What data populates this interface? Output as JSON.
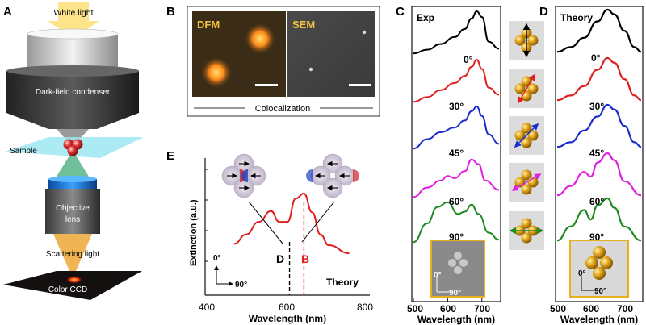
{
  "panels": {
    "a": {
      "letter": "A",
      "white_light": "White light",
      "condenser": "Dark-field condenser",
      "sample": "Sample",
      "objective": "Objective\nlens",
      "scattering": "Scattering light",
      "ccd": "Color CCD"
    },
    "b": {
      "letter": "B",
      "dfm": "DFM",
      "sem": "SEM",
      "caption": "Colocalization"
    },
    "c": {
      "letter": "C",
      "tag": "Exp",
      "angles": [
        "0°",
        "30°",
        "45°",
        "60°",
        "90°"
      ],
      "xlabel": "Wavelength (nm)",
      "xticks": [
        "500",
        "600",
        "700"
      ],
      "inset_axis_y": "0°",
      "inset_axis_x": "90°"
    },
    "d": {
      "letter": "D",
      "tag": "Theory",
      "angles": [
        "0°",
        "30°",
        "45°",
        "60°",
        "90°"
      ],
      "xlabel": "Wavelength (nm)",
      "xticks": [
        "500",
        "600",
        "700"
      ],
      "inset_axis_y": "0°",
      "inset_axis_x": "90°"
    },
    "e": {
      "letter": "E",
      "ylabel": "Extinction (a.u.)",
      "xlabel": "Wavelength (nm)",
      "xticks": [
        "400",
        "600",
        "800"
      ],
      "mode_d": "D",
      "mode_b": "B",
      "theory": "Theory",
      "axis_y": "0°",
      "axis_x": "90°"
    }
  },
  "colors": {
    "red": "#e02020",
    "black": "#000000",
    "blue": "#1a2dcc",
    "magenta": "#e020e0",
    "green": "#1f8a1f",
    "gold": "#e4a820",
    "inset_border": "#e8b020"
  },
  "chart_data": [
    {
      "type": "line",
      "panel": "C",
      "title": "Exp",
      "xlabel": "Wavelength (nm)",
      "xlim": [
        500,
        750
      ],
      "series": [
        {
          "name": "0°",
          "color": "#000000",
          "x": [
            500,
            540,
            580,
            620,
            650,
            670,
            685,
            700,
            720,
            750
          ],
          "y": [
            0.1,
            0.18,
            0.3,
            0.45,
            0.62,
            0.85,
            1.0,
            0.88,
            0.35,
            0.2
          ]
        },
        {
          "name": "30°",
          "color": "#e02020",
          "x": [
            500,
            540,
            580,
            620,
            650,
            670,
            685,
            700,
            720,
            750
          ],
          "y": [
            0.1,
            0.2,
            0.35,
            0.5,
            0.65,
            0.85,
            1.0,
            0.8,
            0.4,
            0.25
          ]
        },
        {
          "name": "45°",
          "color": "#1a2dcc",
          "x": [
            500,
            540,
            580,
            620,
            650,
            670,
            685,
            700,
            720,
            750
          ],
          "y": [
            0.1,
            0.3,
            0.45,
            0.55,
            0.7,
            0.9,
            1.0,
            0.8,
            0.4,
            0.2
          ]
        },
        {
          "name": "60°",
          "color": "#e020e0",
          "x": [
            500,
            540,
            580,
            600,
            620,
            650,
            670,
            690,
            710,
            750
          ],
          "y": [
            0.1,
            0.3,
            0.45,
            0.55,
            0.5,
            0.65,
            0.9,
            0.8,
            0.45,
            0.25
          ]
        },
        {
          "name": "90°",
          "color": "#1f8a1f",
          "x": [
            500,
            540,
            570,
            600,
            630,
            650,
            670,
            690,
            720,
            750
          ],
          "y": [
            0.1,
            0.5,
            0.85,
            0.95,
            0.7,
            0.75,
            0.9,
            0.7,
            0.3,
            0.15
          ]
        }
      ]
    },
    {
      "type": "line",
      "panel": "D",
      "title": "Theory",
      "xlabel": "Wavelength (nm)",
      "xlim": [
        500,
        750
      ],
      "series": [
        {
          "name": "0°",
          "color": "#000000",
          "x": [
            500,
            540,
            580,
            620,
            650,
            670,
            700,
            730,
            750
          ],
          "y": [
            0.1,
            0.2,
            0.4,
            0.75,
            1.0,
            0.9,
            0.55,
            0.2,
            0.1
          ]
        },
        {
          "name": "30°",
          "color": "#e02020",
          "x": [
            500,
            540,
            580,
            620,
            650,
            670,
            700,
            730,
            750
          ],
          "y": [
            0.1,
            0.2,
            0.4,
            0.75,
            1.0,
            0.9,
            0.55,
            0.2,
            0.1
          ]
        },
        {
          "name": "45°",
          "color": "#1a2dcc",
          "x": [
            500,
            540,
            580,
            620,
            650,
            670,
            700,
            730,
            750
          ],
          "y": [
            0.1,
            0.2,
            0.45,
            0.75,
            1.0,
            0.9,
            0.55,
            0.2,
            0.1
          ]
        },
        {
          "name": "60°",
          "color": "#e020e0",
          "x": [
            500,
            540,
            580,
            600,
            620,
            650,
            670,
            700,
            750
          ],
          "y": [
            0.1,
            0.3,
            0.6,
            0.5,
            0.8,
            1.0,
            0.85,
            0.4,
            0.1
          ]
        },
        {
          "name": "90°",
          "color": "#1f8a1f",
          "x": [
            500,
            540,
            580,
            600,
            620,
            650,
            670,
            700,
            750
          ],
          "y": [
            0.1,
            0.4,
            0.75,
            0.55,
            0.85,
            1.0,
            0.8,
            0.4,
            0.1
          ]
        }
      ]
    },
    {
      "type": "line",
      "panel": "E",
      "title": "",
      "xlabel": "Wavelength (nm)",
      "ylabel": "Extinction (a.u.)",
      "xlim": [
        400,
        800
      ],
      "series": [
        {
          "name": "Theory",
          "color": "#e02020",
          "x": [
            470,
            500,
            530,
            560,
            580,
            600,
            620,
            640,
            660,
            680,
            700,
            750
          ],
          "y": [
            0.2,
            0.35,
            0.55,
            0.72,
            0.55,
            0.55,
            0.92,
            1.0,
            0.7,
            0.35,
            0.18,
            0.05
          ]
        }
      ],
      "markers": [
        {
          "label": "D",
          "x": 605
        },
        {
          "label": "B",
          "x": 640
        }
      ]
    }
  ]
}
